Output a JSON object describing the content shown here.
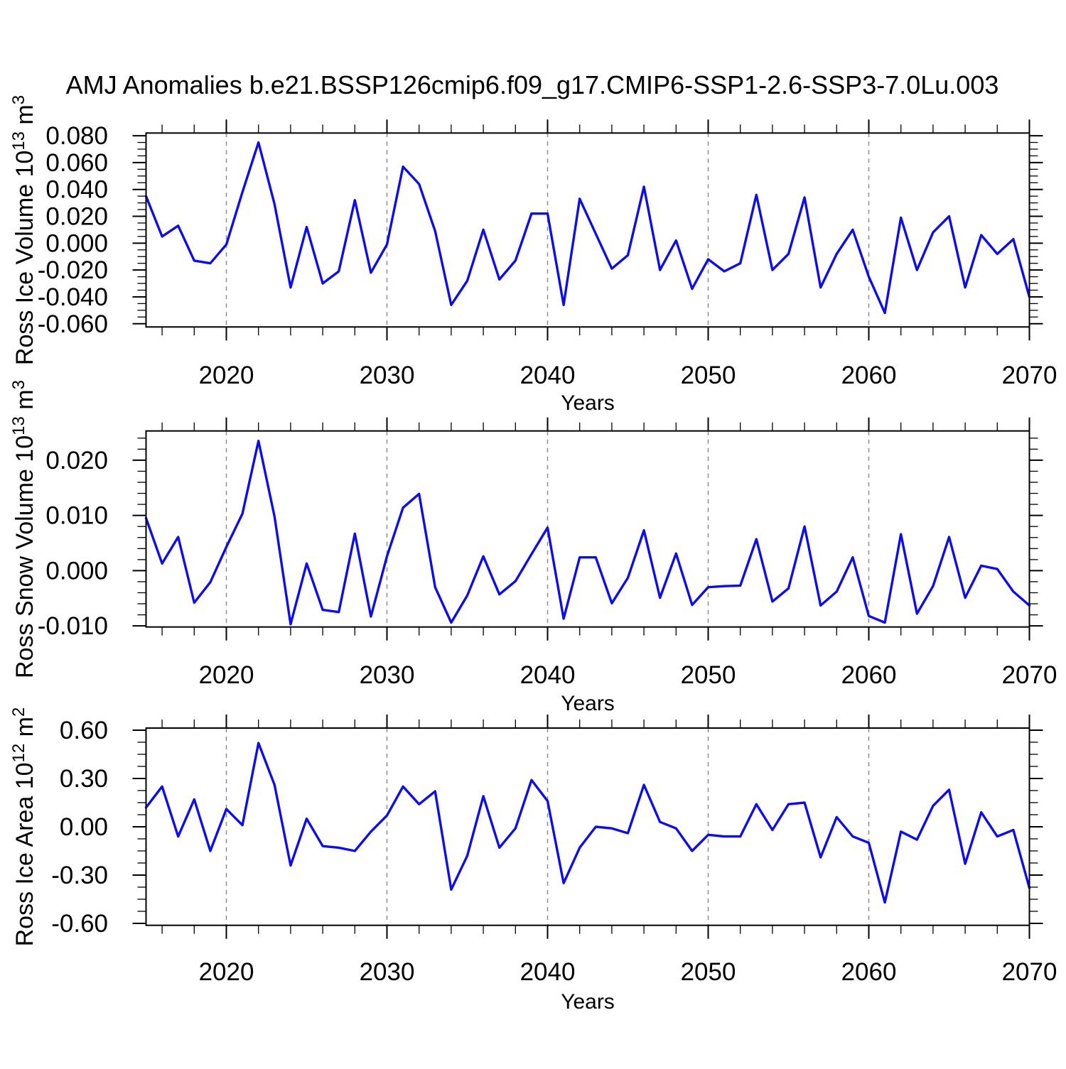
{
  "title": "AMJ Anomalies b.e21.BSSP126cmip6.f09_g17.CMIP6-SSP1-2.6-SSP3-7.0Lu.003",
  "colors": {
    "line": "#0d0dea",
    "grid": "#8c8c8c",
    "axis": "#000000",
    "background": "#ffffff",
    "text": "#000000"
  },
  "x_axis": {
    "label": "Years",
    "range": [
      2015,
      2070
    ],
    "tick_years": [
      2020,
      2030,
      2040,
      2050,
      2060,
      2070
    ],
    "tick_labels": [
      "2020",
      "2030",
      "2040",
      "2050",
      "2060",
      "2070"
    ],
    "minor_step": 2,
    "grid_years": [
      2020,
      2030,
      2040,
      2050,
      2060
    ]
  },
  "chart_data": [
    {
      "type": "line",
      "panel": "ross-ice-volume",
      "ylabel": {
        "base": "Ross Ice Volume 10",
        "sup": "13",
        "base2": " m",
        "sup2": "3"
      },
      "ylim": [
        -0.0624,
        0.082
      ],
      "yticks": [
        0.08,
        0.06,
        0.04,
        0.02,
        0.0,
        -0.02,
        -0.04,
        -0.06
      ],
      "ytick_labels": [
        "0.080",
        "0.060",
        "0.040",
        "0.020",
        "0.000",
        "-0.020",
        "-0.040",
        "-0.060"
      ],
      "y_minor_step": 0.005,
      "y_major_step": 0.02,
      "x_start": 2015,
      "x_step": 1,
      "values": [
        0.035,
        0.005,
        0.013,
        -0.013,
        -0.015,
        -0.001,
        0.038,
        0.075,
        0.029,
        -0.033,
        0.012,
        -0.03,
        -0.021,
        0.032,
        -0.022,
        -0.001,
        0.057,
        0.044,
        0.009,
        -0.046,
        -0.028,
        0.01,
        -0.027,
        -0.013,
        0.022,
        0.022,
        -0.046,
        0.033,
        0.007,
        -0.019,
        -0.009,
        0.042,
        -0.02,
        0.002,
        -0.034,
        -0.012,
        -0.021,
        -0.015,
        0.036,
        -0.02,
        -0.008,
        0.034,
        -0.033,
        -0.008,
        0.01,
        -0.025,
        -0.052,
        0.019,
        -0.02,
        0.008,
        0.02,
        -0.033,
        0.006,
        -0.008,
        0.003,
        -0.04
      ]
    },
    {
      "type": "line",
      "panel": "ross-snow-volume",
      "ylabel": {
        "base": "Ross Snow Volume 10",
        "sup": "13",
        "base2": " m",
        "sup2": "3"
      },
      "ylim": [
        -0.0102,
        0.0253
      ],
      "yticks": [
        0.02,
        0.01,
        0.0,
        -0.01
      ],
      "ytick_labels": [
        "0.020",
        "0.010",
        "0.000",
        "-0.010"
      ],
      "y_minor_step": 0.002,
      "y_major_step": 0.01,
      "x_start": 2015,
      "x_step": 1,
      "values": [
        0.0095,
        0.0013,
        0.0061,
        -0.0058,
        -0.0021,
        0.0043,
        0.0103,
        0.0235,
        0.0098,
        -0.0097,
        0.0013,
        -0.0071,
        -0.0075,
        0.0067,
        -0.0083,
        0.0026,
        0.0114,
        0.0139,
        -0.003,
        -0.0094,
        -0.0045,
        0.0026,
        -0.0043,
        -0.0019,
        0.003,
        0.0078,
        -0.0087,
        0.0024,
        0.0024,
        -0.0059,
        -0.0013,
        0.0073,
        -0.0049,
        0.0031,
        -0.0062,
        -0.003,
        -0.0028,
        -0.0027,
        0.0057,
        -0.0056,
        -0.0032,
        0.008,
        -0.0063,
        -0.0038,
        0.0024,
        -0.0082,
        -0.0094,
        0.0066,
        -0.0078,
        -0.0028,
        0.0061,
        -0.0049,
        0.0009,
        0.0003,
        -0.0038,
        -0.0063
      ]
    },
    {
      "type": "line",
      "panel": "ross-ice-area",
      "ylabel": {
        "base": "Ross Ice Area 10",
        "sup": "12",
        "base2": " m",
        "sup2": "2"
      },
      "ylim": [
        -0.612,
        0.613
      ],
      "yticks": [
        0.6,
        0.3,
        0.0,
        -0.3,
        -0.6
      ],
      "ytick_labels": [
        "0.60",
        "0.30",
        "0.00",
        "-0.30",
        "-0.60"
      ],
      "y_minor_step": 0.075,
      "y_major_step": 0.3,
      "x_start": 2015,
      "x_step": 1,
      "values": [
        0.12,
        0.25,
        -0.06,
        0.17,
        -0.15,
        0.11,
        0.01,
        0.52,
        0.26,
        -0.24,
        0.05,
        -0.12,
        -0.13,
        -0.15,
        -0.03,
        0.07,
        0.25,
        0.14,
        0.22,
        -0.39,
        -0.18,
        0.19,
        -0.13,
        -0.01,
        0.29,
        0.16,
        -0.35,
        -0.13,
        0.0,
        -0.01,
        -0.04,
        0.26,
        0.03,
        -0.01,
        -0.15,
        -0.05,
        -0.06,
        -0.06,
        0.14,
        -0.02,
        0.14,
        0.15,
        -0.19,
        0.06,
        -0.06,
        -0.1,
        -0.47,
        -0.03,
        -0.08,
        0.13,
        0.23,
        -0.23,
        0.09,
        -0.06,
        -0.02,
        -0.38
      ]
    }
  ]
}
